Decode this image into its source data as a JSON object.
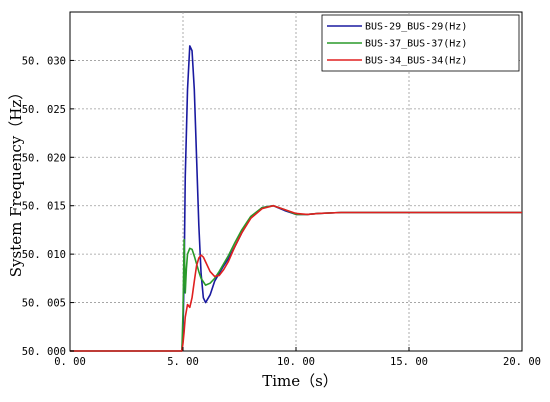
{
  "chart_data": {
    "type": "line",
    "xlabel": "Time（s）",
    "ylabel": "System Frequency（Hz）",
    "xlim": [
      0,
      20
    ],
    "ylim": [
      50.0,
      50.035
    ],
    "xticks": [
      0,
      5,
      10,
      15,
      20
    ],
    "xtick_labels": [
      "0. 00",
      "5. 00",
      "10. 00",
      "15. 00",
      "20. 00"
    ],
    "yticks": [
      50.0,
      50.005,
      50.01,
      50.015,
      50.02,
      50.025,
      50.03
    ],
    "ytick_labels": [
      "50. 000",
      "50. 005",
      "50. 010",
      "50. 015",
      "50. 020",
      "50. 025",
      "50. 030"
    ],
    "grid": true,
    "legend_position": "top-right",
    "series": [
      {
        "name": "BUS-29_BUS-29(Hz)",
        "color": "#1a1aa0",
        "x": [
          0,
          4.95,
          5.0,
          5.05,
          5.1,
          5.2,
          5.3,
          5.4,
          5.5,
          5.6,
          5.7,
          5.8,
          5.9,
          6.0,
          6.2,
          6.4,
          6.6,
          6.8,
          7.0,
          7.3,
          7.6,
          8.0,
          8.5,
          9.0,
          9.5,
          10.0,
          10.5,
          11.0,
          12.0,
          14.0,
          20.0
        ],
        "y": [
          50.0,
          50.0,
          50.002,
          50.008,
          50.018,
          50.027,
          50.0315,
          50.031,
          50.027,
          50.02,
          50.013,
          50.008,
          50.0055,
          50.005,
          50.0058,
          50.0072,
          50.008,
          50.0088,
          50.0095,
          50.0108,
          50.0122,
          50.0138,
          50.0148,
          50.015,
          50.0145,
          50.0141,
          50.0141,
          50.0142,
          50.0143,
          50.0143,
          50.0143
        ]
      },
      {
        "name": "BUS-37_BUS-37(Hz)",
        "color": "#2a9a2a",
        "x": [
          0,
          4.95,
          5.0,
          5.05,
          5.1,
          5.15,
          5.2,
          5.3,
          5.4,
          5.5,
          5.6,
          5.7,
          5.8,
          6.0,
          6.2,
          6.4,
          6.6,
          6.8,
          7.0,
          7.3,
          7.6,
          8.0,
          8.5,
          9.0,
          9.5,
          10.0,
          10.5,
          11.0,
          12.0,
          14.0,
          20.0
        ],
        "y": [
          50.0,
          50.0,
          50.004,
          50.0115,
          50.006,
          50.0085,
          50.01,
          50.0106,
          50.0105,
          50.0098,
          50.009,
          50.0082,
          50.0075,
          50.0068,
          50.007,
          50.0075,
          50.0082,
          50.009,
          50.0098,
          50.0112,
          50.0125,
          50.0139,
          50.0148,
          50.015,
          50.0146,
          50.0141,
          50.0141,
          50.0142,
          50.0143,
          50.0143,
          50.0143
        ]
      },
      {
        "name": "BUS-34_BUS-34(Hz)",
        "color": "#e02020",
        "x": [
          0,
          4.95,
          5.0,
          5.05,
          5.1,
          5.2,
          5.3,
          5.4,
          5.5,
          5.6,
          5.7,
          5.8,
          5.9,
          6.0,
          6.2,
          6.4,
          6.6,
          6.8,
          7.0,
          7.3,
          7.6,
          8.0,
          8.5,
          9.0,
          9.5,
          10.0,
          10.5,
          11.0,
          12.0,
          14.0,
          20.0
        ],
        "y": [
          50.0,
          50.0,
          50.0008,
          50.002,
          50.0035,
          50.0048,
          50.0045,
          50.0055,
          50.0072,
          50.0088,
          50.0096,
          50.0099,
          50.0097,
          50.0092,
          50.0082,
          50.0077,
          50.0078,
          50.0084,
          50.0092,
          50.0108,
          50.0122,
          50.0137,
          50.0147,
          50.015,
          50.0146,
          50.0142,
          50.0141,
          50.0142,
          50.0143,
          50.0143,
          50.0143
        ]
      }
    ]
  }
}
